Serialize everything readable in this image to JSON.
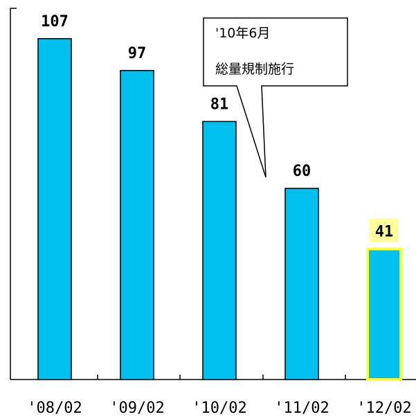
{
  "chart_data": {
    "type": "bar",
    "categories": [
      "'08/02",
      "'09/02",
      "'10/02",
      "'11/02",
      "'12/02"
    ],
    "values": [
      107,
      97,
      81,
      60,
      41
    ],
    "title": "",
    "xlabel": "",
    "ylabel": "",
    "ylim": [
      0,
      115
    ],
    "grid": false,
    "legend": "none",
    "bar_color": "#00c0ef",
    "highlight_index": 4,
    "highlight_color": "#ffff33",
    "annotation": {
      "lines": [
        "'10年6月",
        "総量規制施行"
      ],
      "points_to_category": "'11/02"
    }
  }
}
